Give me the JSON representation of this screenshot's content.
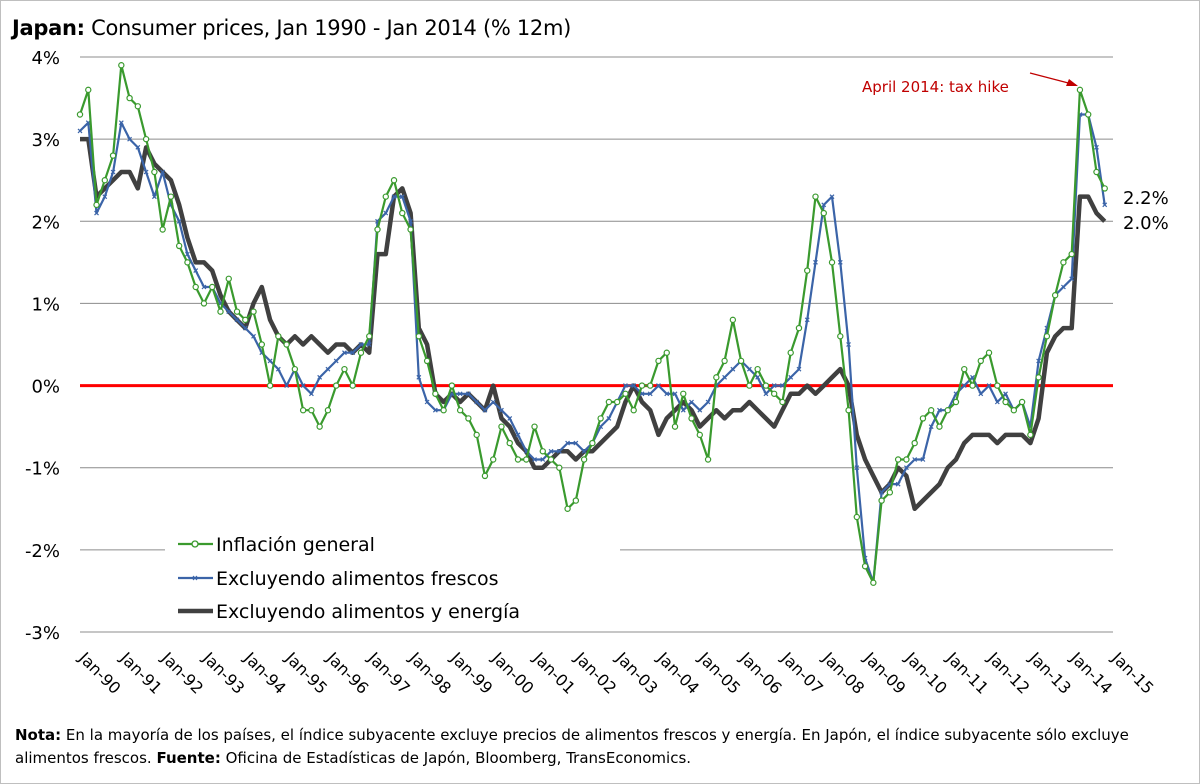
{
  "title": {
    "country": "Japan:",
    "text": "Consumer prices, Jan 1990 - Jan 2014 (% 12m)"
  },
  "annotation": {
    "text": "April 2014: tax hike",
    "color": "#c00000"
  },
  "end_labels": {
    "series1": "2.2%",
    "series2": "2.0%"
  },
  "note": {
    "label1": "Nota:",
    "text1": " En la mayoría de los países, el índice subyacente excluye precios de alimentos frescos y energía. En Japón, el índice subyacente sólo excluye alimentos frescos. ",
    "label2": "Fuente:",
    "text2": " Oficina de Estadísticas de Japón, Bloomberg, TransEconomics."
  },
  "chart_data": {
    "type": "line",
    "title": "Japan: Consumer prices, Jan 1990 - Jan 2014 (% 12m)",
    "xlabel": "",
    "ylabel": "",
    "x_range": [
      1990,
      2015
    ],
    "ylim": [
      -3,
      4
    ],
    "y_ticks": [
      "-3%",
      "-2%",
      "-1%",
      "0%",
      "1%",
      "2%",
      "3%",
      "4%"
    ],
    "y_tick_values": [
      -3,
      -2,
      -1,
      0,
      1,
      2,
      3,
      4
    ],
    "x_ticks": [
      "Jan-90",
      "Jan-91",
      "Jan-92",
      "Jan-93",
      "Jan-94",
      "Jan-95",
      "Jan-96",
      "Jan-97",
      "Jan-98",
      "Jan-99",
      "Jan-00",
      "Jan-01",
      "Jan-02",
      "Jan-03",
      "Jan-04",
      "Jan-05",
      "Jan-06",
      "Jan-07",
      "Jan-08",
      "Jan-09",
      "Jan-10",
      "Jan-11",
      "Jan-12",
      "Jan-13",
      "Jan-14",
      "Jan-15"
    ],
    "reference_line": {
      "y": 0,
      "color": "#ff0000"
    },
    "grid": "horizontal",
    "legend_position": "bottom-left",
    "series": [
      {
        "name": "Inflación general",
        "color": "#3a9a2e",
        "marker": "circle",
        "x": [
          1990.0,
          1990.2,
          1990.4,
          1990.6,
          1990.8,
          1991.0,
          1991.2,
          1991.4,
          1991.6,
          1991.8,
          1992.0,
          1992.2,
          1992.4,
          1992.6,
          1992.8,
          1993.0,
          1993.2,
          1993.4,
          1993.6,
          1993.8,
          1994.0,
          1994.2,
          1994.4,
          1994.6,
          1994.8,
          1995.0,
          1995.2,
          1995.4,
          1995.6,
          1995.8,
          1996.0,
          1996.2,
          1996.4,
          1996.6,
          1996.8,
          1997.0,
          1997.2,
          1997.4,
          1997.6,
          1997.8,
          1998.0,
          1998.2,
          1998.4,
          1998.6,
          1998.8,
          1999.0,
          1999.2,
          1999.4,
          1999.6,
          1999.8,
          2000.0,
          2000.2,
          2000.4,
          2000.6,
          2000.8,
          2001.0,
          2001.2,
          2001.4,
          2001.6,
          2001.8,
          2002.0,
          2002.2,
          2002.4,
          2002.6,
          2002.8,
          2003.0,
          2003.2,
          2003.4,
          2003.6,
          2003.8,
          2004.0,
          2004.2,
          2004.4,
          2004.6,
          2004.8,
          2005.0,
          2005.2,
          2005.4,
          2005.6,
          2005.8,
          2006.0,
          2006.2,
          2006.4,
          2006.6,
          2006.8,
          2007.0,
          2007.2,
          2007.4,
          2007.6,
          2007.8,
          2008.0,
          2008.2,
          2008.4,
          2008.6,
          2008.8,
          2009.0,
          2009.2,
          2009.4,
          2009.6,
          2009.8,
          2010.0,
          2010.2,
          2010.4,
          2010.6,
          2010.8,
          2011.0,
          2011.2,
          2011.4,
          2011.6,
          2011.8,
          2012.0,
          2012.2,
          2012.4,
          2012.6,
          2012.8,
          2013.0,
          2013.2,
          2013.4,
          2013.6,
          2013.8,
          2014.0,
          2014.2,
          2014.4,
          2014.6,
          2014.8
        ],
        "values": [
          3.3,
          3.6,
          2.2,
          2.5,
          2.8,
          3.9,
          3.5,
          3.4,
          3.0,
          2.6,
          1.9,
          2.3,
          1.7,
          1.5,
          1.2,
          1.0,
          1.2,
          0.9,
          1.3,
          0.9,
          0.8,
          0.9,
          0.5,
          0.0,
          0.6,
          0.5,
          0.2,
          -0.3,
          -0.3,
          -0.5,
          -0.3,
          0.0,
          0.2,
          0.0,
          0.4,
          0.6,
          1.9,
          2.3,
          2.5,
          2.1,
          1.9,
          0.6,
          0.3,
          -0.1,
          -0.3,
          0.0,
          -0.3,
          -0.4,
          -0.6,
          -1.1,
          -0.9,
          -0.5,
          -0.7,
          -0.9,
          -0.9,
          -0.5,
          -0.8,
          -0.9,
          -1.0,
          -1.5,
          -1.4,
          -0.9,
          -0.7,
          -0.4,
          -0.2,
          -0.2,
          -0.1,
          -0.3,
          0.0,
          0.0,
          0.3,
          0.4,
          -0.5,
          -0.1,
          -0.4,
          -0.6,
          -0.9,
          0.1,
          0.3,
          0.8,
          0.3,
          0.0,
          0.2,
          0.0,
          -0.1,
          -0.2,
          0.4,
          0.7,
          1.4,
          2.3,
          2.1,
          1.5,
          0.6,
          -0.3,
          -1.6,
          -2.2,
          -2.4,
          -1.4,
          -1.3,
          -0.9,
          -0.9,
          -0.7,
          -0.4,
          -0.3,
          -0.5,
          -0.3,
          -0.2,
          0.2,
          0.0,
          0.3,
          0.4,
          0.0,
          -0.2,
          -0.3,
          -0.2,
          -0.6,
          0.1,
          0.6,
          1.1,
          1.5,
          1.6,
          3.6,
          3.3,
          2.6,
          2.4
        ]
      },
      {
        "name": "Excluyendo alimentos frescos",
        "color": "#3b64a8",
        "marker": "cross",
        "x": [
          1990.0,
          1990.2,
          1990.4,
          1990.6,
          1990.8,
          1991.0,
          1991.2,
          1991.4,
          1991.6,
          1991.8,
          1992.0,
          1992.2,
          1992.4,
          1992.6,
          1992.8,
          1993.0,
          1993.2,
          1993.4,
          1993.6,
          1993.8,
          1994.0,
          1994.2,
          1994.4,
          1994.6,
          1994.8,
          1995.0,
          1995.2,
          1995.4,
          1995.6,
          1995.8,
          1996.0,
          1996.2,
          1996.4,
          1996.6,
          1996.8,
          1997.0,
          1997.2,
          1997.4,
          1997.6,
          1997.8,
          1998.0,
          1998.2,
          1998.4,
          1998.6,
          1998.8,
          1999.0,
          1999.2,
          1999.4,
          1999.6,
          1999.8,
          2000.0,
          2000.2,
          2000.4,
          2000.6,
          2000.8,
          2001.0,
          2001.2,
          2001.4,
          2001.6,
          2001.8,
          2002.0,
          2002.2,
          2002.4,
          2002.6,
          2002.8,
          2003.0,
          2003.2,
          2003.4,
          2003.6,
          2003.8,
          2004.0,
          2004.2,
          2004.4,
          2004.6,
          2004.8,
          2005.0,
          2005.2,
          2005.4,
          2005.6,
          2005.8,
          2006.0,
          2006.2,
          2006.4,
          2006.6,
          2006.8,
          2007.0,
          2007.2,
          2007.4,
          2007.6,
          2007.8,
          2008.0,
          2008.2,
          2008.4,
          2008.6,
          2008.8,
          2009.0,
          2009.2,
          2009.4,
          2009.6,
          2009.8,
          2010.0,
          2010.2,
          2010.4,
          2010.6,
          2010.8,
          2011.0,
          2011.2,
          2011.4,
          2011.6,
          2011.8,
          2012.0,
          2012.2,
          2012.4,
          2012.6,
          2012.8,
          2013.0,
          2013.2,
          2013.4,
          2013.6,
          2013.8,
          2014.0,
          2014.2,
          2014.4,
          2014.6,
          2014.8
        ],
        "values": [
          3.1,
          3.2,
          2.1,
          2.3,
          2.6,
          3.2,
          3.0,
          2.9,
          2.6,
          2.3,
          2.6,
          2.2,
          2.0,
          1.6,
          1.4,
          1.2,
          1.2,
          1.0,
          0.9,
          0.8,
          0.7,
          0.6,
          0.4,
          0.3,
          0.2,
          0.0,
          0.2,
          0.0,
          -0.1,
          0.1,
          0.2,
          0.3,
          0.4,
          0.4,
          0.5,
          0.5,
          2.0,
          2.1,
          2.3,
          2.3,
          2.0,
          0.1,
          -0.2,
          -0.3,
          -0.3,
          -0.1,
          -0.1,
          -0.1,
          -0.2,
          -0.3,
          -0.2,
          -0.3,
          -0.4,
          -0.6,
          -0.8,
          -0.9,
          -0.9,
          -0.8,
          -0.8,
          -0.7,
          -0.7,
          -0.8,
          -0.7,
          -0.5,
          -0.4,
          -0.2,
          0.0,
          0.0,
          -0.1,
          -0.1,
          0.0,
          -0.1,
          -0.1,
          -0.3,
          -0.2,
          -0.3,
          -0.2,
          0.0,
          0.1,
          0.2,
          0.3,
          0.2,
          0.1,
          -0.1,
          0.0,
          0.0,
          0.1,
          0.2,
          0.8,
          1.5,
          2.2,
          2.3,
          1.5,
          0.5,
          -1.0,
          -2.1,
          -2.4,
          -1.3,
          -1.2,
          -1.2,
          -1.0,
          -0.9,
          -0.9,
          -0.5,
          -0.3,
          -0.3,
          -0.1,
          0.0,
          0.1,
          -0.1,
          0.0,
          -0.2,
          -0.1,
          -0.3,
          -0.2,
          -0.5,
          0.3,
          0.7,
          1.1,
          1.2,
          1.3,
          3.3,
          3.3,
          2.9,
          2.2
        ]
      },
      {
        "name": "Excluyendo alimentos y energía",
        "color": "#404040",
        "marker": "none",
        "x": [
          1990.0,
          1990.2,
          1990.4,
          1990.6,
          1990.8,
          1991.0,
          1991.2,
          1991.4,
          1991.6,
          1991.8,
          1992.0,
          1992.2,
          1992.4,
          1992.6,
          1992.8,
          1993.0,
          1993.2,
          1993.4,
          1993.6,
          1993.8,
          1994.0,
          1994.2,
          1994.4,
          1994.6,
          1994.8,
          1995.0,
          1995.2,
          1995.4,
          1995.6,
          1995.8,
          1996.0,
          1996.2,
          1996.4,
          1996.6,
          1996.8,
          1997.0,
          1997.2,
          1997.4,
          1997.6,
          1997.8,
          1998.0,
          1998.2,
          1998.4,
          1998.6,
          1998.8,
          1999.0,
          1999.2,
          1999.4,
          1999.6,
          1999.8,
          2000.0,
          2000.2,
          2000.4,
          2000.6,
          2000.8,
          2001.0,
          2001.2,
          2001.4,
          2001.6,
          2001.8,
          2002.0,
          2002.2,
          2002.4,
          2002.6,
          2002.8,
          2003.0,
          2003.2,
          2003.4,
          2003.6,
          2003.8,
          2004.0,
          2004.2,
          2004.4,
          2004.6,
          2004.8,
          2005.0,
          2005.2,
          2005.4,
          2005.6,
          2005.8,
          2006.0,
          2006.2,
          2006.4,
          2006.6,
          2006.8,
          2007.0,
          2007.2,
          2007.4,
          2007.6,
          2007.8,
          2008.0,
          2008.2,
          2008.4,
          2008.6,
          2008.8,
          2009.0,
          2009.2,
          2009.4,
          2009.6,
          2009.8,
          2010.0,
          2010.2,
          2010.4,
          2010.6,
          2010.8,
          2011.0,
          2011.2,
          2011.4,
          2011.6,
          2011.8,
          2012.0,
          2012.2,
          2012.4,
          2012.6,
          2012.8,
          2013.0,
          2013.2,
          2013.4,
          2013.6,
          2013.8,
          2014.0,
          2014.2,
          2014.4,
          2014.6,
          2014.8
        ],
        "values": [
          3.0,
          3.0,
          2.3,
          2.4,
          2.5,
          2.6,
          2.6,
          2.4,
          2.9,
          2.7,
          2.6,
          2.5,
          2.2,
          1.8,
          1.5,
          1.5,
          1.4,
          1.1,
          0.9,
          0.8,
          0.7,
          1.0,
          1.2,
          0.8,
          0.6,
          0.5,
          0.6,
          0.5,
          0.6,
          0.5,
          0.4,
          0.5,
          0.5,
          0.4,
          0.5,
          0.4,
          1.6,
          1.6,
          2.3,
          2.4,
          2.1,
          0.7,
          0.5,
          -0.1,
          -0.2,
          -0.1,
          -0.2,
          -0.1,
          -0.2,
          -0.3,
          0.0,
          -0.4,
          -0.5,
          -0.7,
          -0.8,
          -1.0,
          -1.0,
          -0.9,
          -0.8,
          -0.8,
          -0.9,
          -0.8,
          -0.8,
          -0.7,
          -0.6,
          -0.5,
          -0.2,
          0.0,
          -0.2,
          -0.3,
          -0.6,
          -0.4,
          -0.3,
          -0.2,
          -0.3,
          -0.5,
          -0.4,
          -0.3,
          -0.4,
          -0.3,
          -0.3,
          -0.2,
          -0.3,
          -0.4,
          -0.5,
          -0.3,
          -0.1,
          -0.1,
          0.0,
          -0.1,
          0.0,
          0.1,
          0.2,
          0.0,
          -0.6,
          -0.9,
          -1.1,
          -1.3,
          -1.2,
          -1.0,
          -1.1,
          -1.5,
          -1.4,
          -1.3,
          -1.2,
          -1.0,
          -0.9,
          -0.7,
          -0.6,
          -0.6,
          -0.6,
          -0.7,
          -0.6,
          -0.6,
          -0.6,
          -0.7,
          -0.4,
          0.4,
          0.6,
          0.7,
          0.7,
          2.3,
          2.3,
          2.1,
          2.0
        ]
      }
    ]
  }
}
